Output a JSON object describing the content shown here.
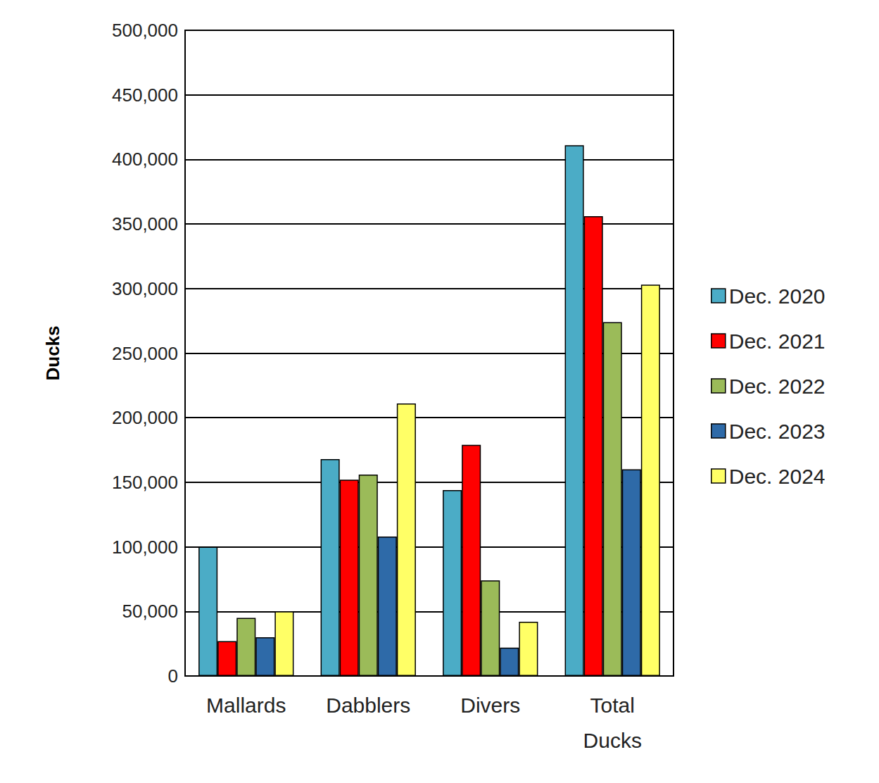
{
  "chart_data": {
    "type": "bar",
    "ylabel": "Ducks",
    "categories": [
      "Mallards",
      "Dabblers",
      "Divers",
      "Total Ducks"
    ],
    "series": [
      {
        "name": "Dec. 2020",
        "color": "#4bacc6",
        "values": [
          100000,
          168000,
          144000,
          411000
        ]
      },
      {
        "name": "Dec. 2021",
        "color": "#ff0000",
        "values": [
          27000,
          152000,
          179000,
          356000
        ]
      },
      {
        "name": "Dec. 2022",
        "color": "#9bbb59",
        "values": [
          45000,
          156000,
          74000,
          274000
        ]
      },
      {
        "name": "Dec. 2023",
        "color": "#2e6aa8",
        "values": [
          30000,
          108000,
          22000,
          160000
        ]
      },
      {
        "name": "Dec. 2024",
        "color": "#ffff66",
        "values": [
          50000,
          211000,
          42000,
          303000
        ]
      }
    ],
    "ylim": [
      0,
      500000
    ],
    "yticks": [
      0,
      {
        "value": 50000,
        "label": "50,000"
      },
      {
        "value": 100000,
        "label": "100,000"
      },
      {
        "value": 150000,
        "label": "150,000"
      },
      {
        "value": 200000,
        "label": "200,000"
      },
      {
        "value": 250000,
        "label": "250,000"
      },
      {
        "value": 300000,
        "label": "300,000"
      },
      {
        "value": 350000,
        "label": "350,000"
      },
      {
        "value": 400000,
        "label": "400,000"
      },
      {
        "value": 450000,
        "label": "450,000"
      },
      {
        "value": 500000,
        "label": "500,000"
      }
    ],
    "grid": true,
    "legend": "right"
  }
}
